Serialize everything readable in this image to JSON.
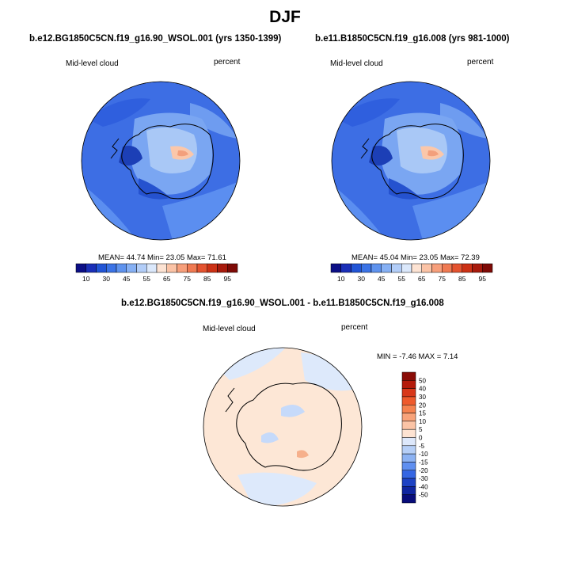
{
  "main_title": "DJF",
  "panel_left": {
    "title": "b.e12.BG1850C5CN.f19_g16.90_WSOL.001 (yrs 1350-1399)",
    "variable": "Mid-level cloud",
    "units": "percent",
    "stats": "MEAN=  44.74  Min=  23.05  Max=  71.61"
  },
  "panel_right": {
    "title": "b.e11.B1850C5CN.f19_g16.008 (yrs 981-1000)",
    "variable": "Mid-level cloud",
    "units": "percent",
    "stats": "MEAN=  45.04  Min=  23.05  Max=  72.39"
  },
  "panel_diff": {
    "title": "b.e12.BG1850C5CN.f19_g16.90_WSOL.001 - b.e11.B1850C5CN.f19_g16.008",
    "variable": "Mid-level cloud",
    "units": "percent",
    "stats": "MIN =  -7.46  MAX =   7.14"
  },
  "abs_colorbar": {
    "labels": [
      "10",
      "30",
      "45",
      "55",
      "65",
      "75",
      "85",
      "95"
    ],
    "colors": [
      "#0c0f86",
      "#1a2fb8",
      "#2255d6",
      "#3b73e6",
      "#5f93ee",
      "#86b0f4",
      "#b2cdf8",
      "#dbe8fb",
      "#fde3d3",
      "#fbc3a6",
      "#f79f7b",
      "#f07a52",
      "#e4532f",
      "#cc3115",
      "#a81a0c",
      "#7e0a06"
    ]
  },
  "diff_colorbar": {
    "labels": [
      "50",
      "40",
      "30",
      "20",
      "15",
      "10",
      "5",
      "0",
      "-5",
      "-10",
      "-15",
      "-20",
      "-30",
      "-40",
      "-50"
    ],
    "colors": [
      "#8a0c06",
      "#b41a0a",
      "#d8381a",
      "#ee5a2c",
      "#f5824f",
      "#f8a37a",
      "#fbc4a6",
      "#fde3d2",
      "#dde8fb",
      "#b6cff7",
      "#8cb2f3",
      "#5f8ff0",
      "#3566e3",
      "#1d42c4",
      "#0f25a0",
      "#080c7a"
    ]
  }
}
